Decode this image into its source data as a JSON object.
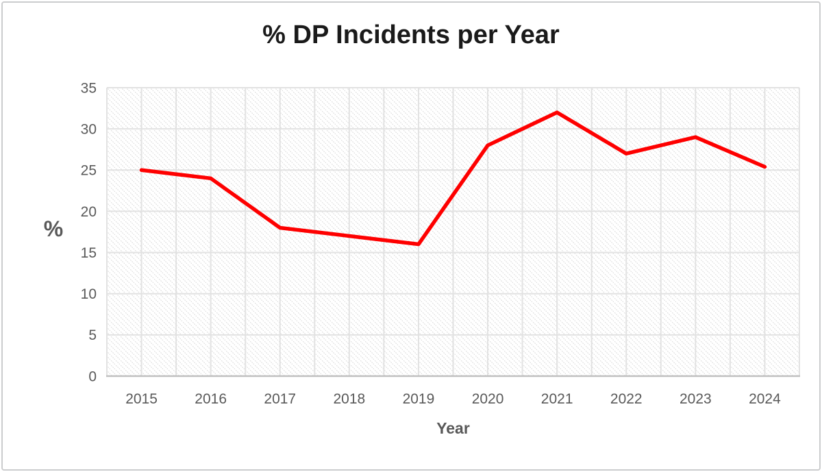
{
  "window": {
    "background": "#ffffff",
    "frame_border_color": "#cbcccd"
  },
  "chart_data": {
    "type": "line",
    "title": "% DP Incidents per Year",
    "xlabel": "Year",
    "ylabel": "%",
    "categories": [
      "2015",
      "2016",
      "2017",
      "2018",
      "2019",
      "2020",
      "2021",
      "2022",
      "2023",
      "2024"
    ],
    "values": [
      25,
      24,
      18,
      17,
      16,
      28,
      32,
      27,
      29,
      25.4
    ],
    "ylim": [
      0,
      35
    ],
    "ytick_step": 5,
    "legend": "none",
    "markers": "none",
    "grid": {
      "horizontal": "major every 5",
      "vertical": "every half category",
      "plot_fill": "diagonal dotted hatch"
    },
    "colors": {
      "line": "#fe0000",
      "grid": "#e2e2e2",
      "axis_line": "#bfbfbf",
      "axis_text": "#595959",
      "title_text": "#1a1a1a",
      "hatch": "#d9d9d9"
    }
  }
}
